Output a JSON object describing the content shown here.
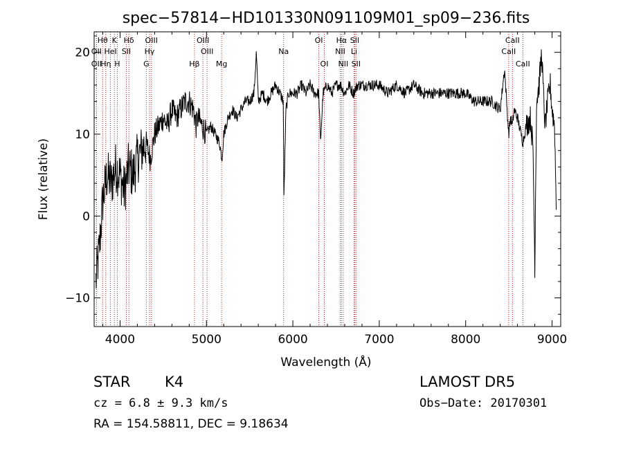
{
  "chart_data": {
    "type": "line",
    "title": "spec−57814−HD101330N091109M01_sp09−236.fits",
    "xlabel": "Wavelength (Å)",
    "ylabel": "Flux (relative)",
    "xlim": [
      3700,
      9100
    ],
    "ylim": [
      -13.5,
      22.5
    ],
    "xticks": [
      4000,
      5000,
      6000,
      7000,
      8000,
      9000
    ],
    "yticks": [
      -10,
      0,
      10,
      20
    ],
    "grid": false,
    "series": [
      {
        "x": [
          3720,
          3760,
          3800,
          3850,
          3900,
          3950,
          4000,
          4050,
          4100,
          4150,
          4200,
          4250,
          4300,
          4350,
          4400,
          4450,
          4500,
          4550,
          4600,
          4650,
          4700,
          4750,
          4800,
          4850,
          4880,
          4900,
          4950,
          5000,
          5050,
          5100,
          5150,
          5180,
          5200,
          5250,
          5300,
          5350,
          5400,
          5450,
          5500,
          5550,
          5577,
          5600,
          5650,
          5700,
          5750,
          5800,
          5850,
          5890,
          5896,
          5920,
          5950,
          6000,
          6050,
          6100,
          6150,
          6200,
          6250,
          6300,
          6320,
          6350,
          6400,
          6450,
          6500,
          6550,
          6600,
          6650,
          6700,
          6750,
          6800,
          6900,
          7000,
          7100,
          7200,
          7300,
          7400,
          7500,
          7600,
          7700,
          7800,
          7900,
          8000,
          8100,
          8200,
          8300,
          8400,
          8450,
          8498,
          8520,
          8542,
          8560,
          8600,
          8662,
          8700,
          8750,
          8780,
          8800,
          8820,
          8850,
          8880,
          8900,
          8920,
          8950,
          8980,
          9000,
          9030,
          9050
        ],
        "y": [
          -8,
          -4,
          2,
          5,
          4,
          6,
          5,
          3,
          6,
          5,
          7,
          8,
          9,
          7,
          10,
          11,
          12,
          11,
          13,
          12,
          13,
          14,
          14,
          13,
          11,
          12,
          11,
          10,
          11,
          10,
          9,
          7,
          10,
          12,
          13,
          12,
          13,
          14,
          14,
          15,
          20,
          14,
          15,
          14,
          15,
          16,
          15,
          14,
          2,
          13,
          15,
          15,
          15,
          16,
          15,
          16,
          15,
          15,
          9,
          15,
          16,
          15,
          16,
          16,
          15,
          16,
          15,
          16,
          16,
          16,
          16,
          15,
          16,
          15,
          16,
          15,
          15,
          15,
          15,
          15,
          15,
          14,
          14,
          14,
          13,
          18,
          10,
          12,
          11,
          13,
          12,
          9,
          11,
          12,
          8,
          -6,
          14,
          16,
          20,
          15,
          11,
          14,
          16,
          13,
          11,
          0
        ]
      }
    ],
    "lines": [
      {
        "label": "Hθ",
        "x": 3798,
        "row": 0
      },
      {
        "label": "OII",
        "x": 3727,
        "row": 1
      },
      {
        "label": "OII",
        "x": 3727,
        "row": 2
      },
      {
        "label": "Hη",
        "x": 3835,
        "row": 2
      },
      {
        "label": "HeI",
        "x": 3889,
        "row": 1
      },
      {
        "label": "K",
        "x": 3934,
        "row": 0
      },
      {
        "label": "H",
        "x": 3968,
        "row": 2
      },
      {
        "label": "SII",
        "x": 4072,
        "row": 1
      },
      {
        "label": "Hδ",
        "x": 4102,
        "row": 0
      },
      {
        "label": "G",
        "x": 4304,
        "row": 2
      },
      {
        "label": "OIII",
        "x": 4363,
        "row": 0
      },
      {
        "label": "Hγ",
        "x": 4341,
        "row": 1
      },
      {
        "label": "Hβ",
        "x": 4861,
        "row": 2
      },
      {
        "label": "OIII",
        "x": 4959,
        "row": 0
      },
      {
        "label": "OIII",
        "x": 5007,
        "row": 1
      },
      {
        "label": "Mg",
        "x": 5175,
        "row": 2
      },
      {
        "label": "Na",
        "x": 5893,
        "row": 1
      },
      {
        "label": "OI",
        "x": 6300,
        "row": 0
      },
      {
        "label": "OI",
        "x": 6364,
        "row": 2
      },
      {
        "label": "Hα",
        "x": 6563,
        "row": 0
      },
      {
        "label": "NII",
        "x": 6548,
        "row": 1
      },
      {
        "label": "NII",
        "x": 6583,
        "row": 2
      },
      {
        "label": "SII",
        "x": 6716,
        "row": 0
      },
      {
        "label": "Li",
        "x": 6708,
        "row": 1
      },
      {
        "label": "SII",
        "x": 6731,
        "row": 2
      },
      {
        "label": "CaII",
        "x": 8542,
        "row": 0
      },
      {
        "label": "CaII",
        "x": 8498,
        "row": 1
      },
      {
        "label": "CaII",
        "x": 8662,
        "row": 2
      }
    ]
  },
  "info": {
    "class": "STAR",
    "subclass": "K4",
    "survey": "LAMOST DR5",
    "cz": "cz = 6.8 ± 9.3 km/s",
    "obs_date": "Obs−Date: 20170301",
    "coords": "RA = 154.58811, DEC =   9.18634"
  },
  "colors": {
    "spectrum": "#000000",
    "line_marker": "#b22222"
  }
}
